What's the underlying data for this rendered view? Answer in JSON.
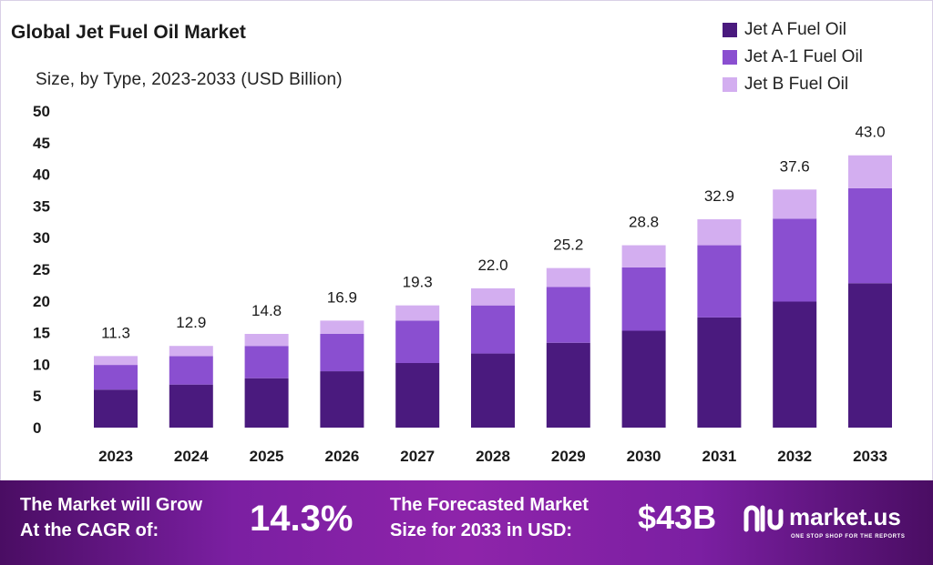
{
  "chart_data": {
    "type": "bar",
    "stacked": true,
    "title": "Global Jet Fuel Oil Market",
    "subtitle": "Size, by Type, 2023-2033 (USD Billion)",
    "categories": [
      "2023",
      "2024",
      "2025",
      "2026",
      "2027",
      "2028",
      "2029",
      "2030",
      "2031",
      "2032",
      "2033"
    ],
    "totals": [
      11.3,
      12.9,
      14.8,
      16.9,
      19.3,
      22.0,
      25.2,
      28.8,
      32.9,
      37.6,
      43.0
    ],
    "total_labels": [
      "11.3",
      "12.9",
      "14.8",
      "16.9",
      "19.3",
      "22.0",
      "25.2",
      "28.8",
      "32.9",
      "37.6",
      "43.0"
    ],
    "series": [
      {
        "name": "Jet A Fuel Oil",
        "color": "#4a1a7e",
        "values": [
          6.0,
          6.8,
          7.8,
          8.9,
          10.2,
          11.7,
          13.4,
          15.3,
          17.4,
          19.9,
          22.8
        ]
      },
      {
        "name": "Jet A-1 Fuel Oil",
        "color": "#8a4fd0",
        "values": [
          3.9,
          4.5,
          5.1,
          5.9,
          6.7,
          7.6,
          8.8,
          10.0,
          11.4,
          13.1,
          15.0
        ]
      },
      {
        "name": "Jet B Fuel Oil",
        "color": "#d3aef0",
        "values": [
          1.4,
          1.6,
          1.9,
          2.1,
          2.4,
          2.7,
          3.0,
          3.5,
          4.1,
          4.6,
          5.2
        ]
      }
    ],
    "yticks": [
      0,
      5,
      10,
      15,
      20,
      25,
      30,
      35,
      40,
      45,
      50
    ],
    "ylim": [
      0,
      50
    ],
    "grid": false,
    "legend_position": "top-right"
  },
  "banner": {
    "cagr_text_line1": "The Market will Grow",
    "cagr_text_line2": "At the CAGR of:",
    "cagr_value": "14.3%",
    "forecast_text_line1": "The Forecasted Market",
    "forecast_text_line2": "Size for 2033 in USD:",
    "forecast_value": "$43B",
    "brand_name": "market.us",
    "brand_tagline": "ONE STOP SHOP FOR THE REPORTS"
  },
  "colors": {
    "banner_gradient": [
      "#4a0d63",
      "#8e24aa"
    ]
  }
}
